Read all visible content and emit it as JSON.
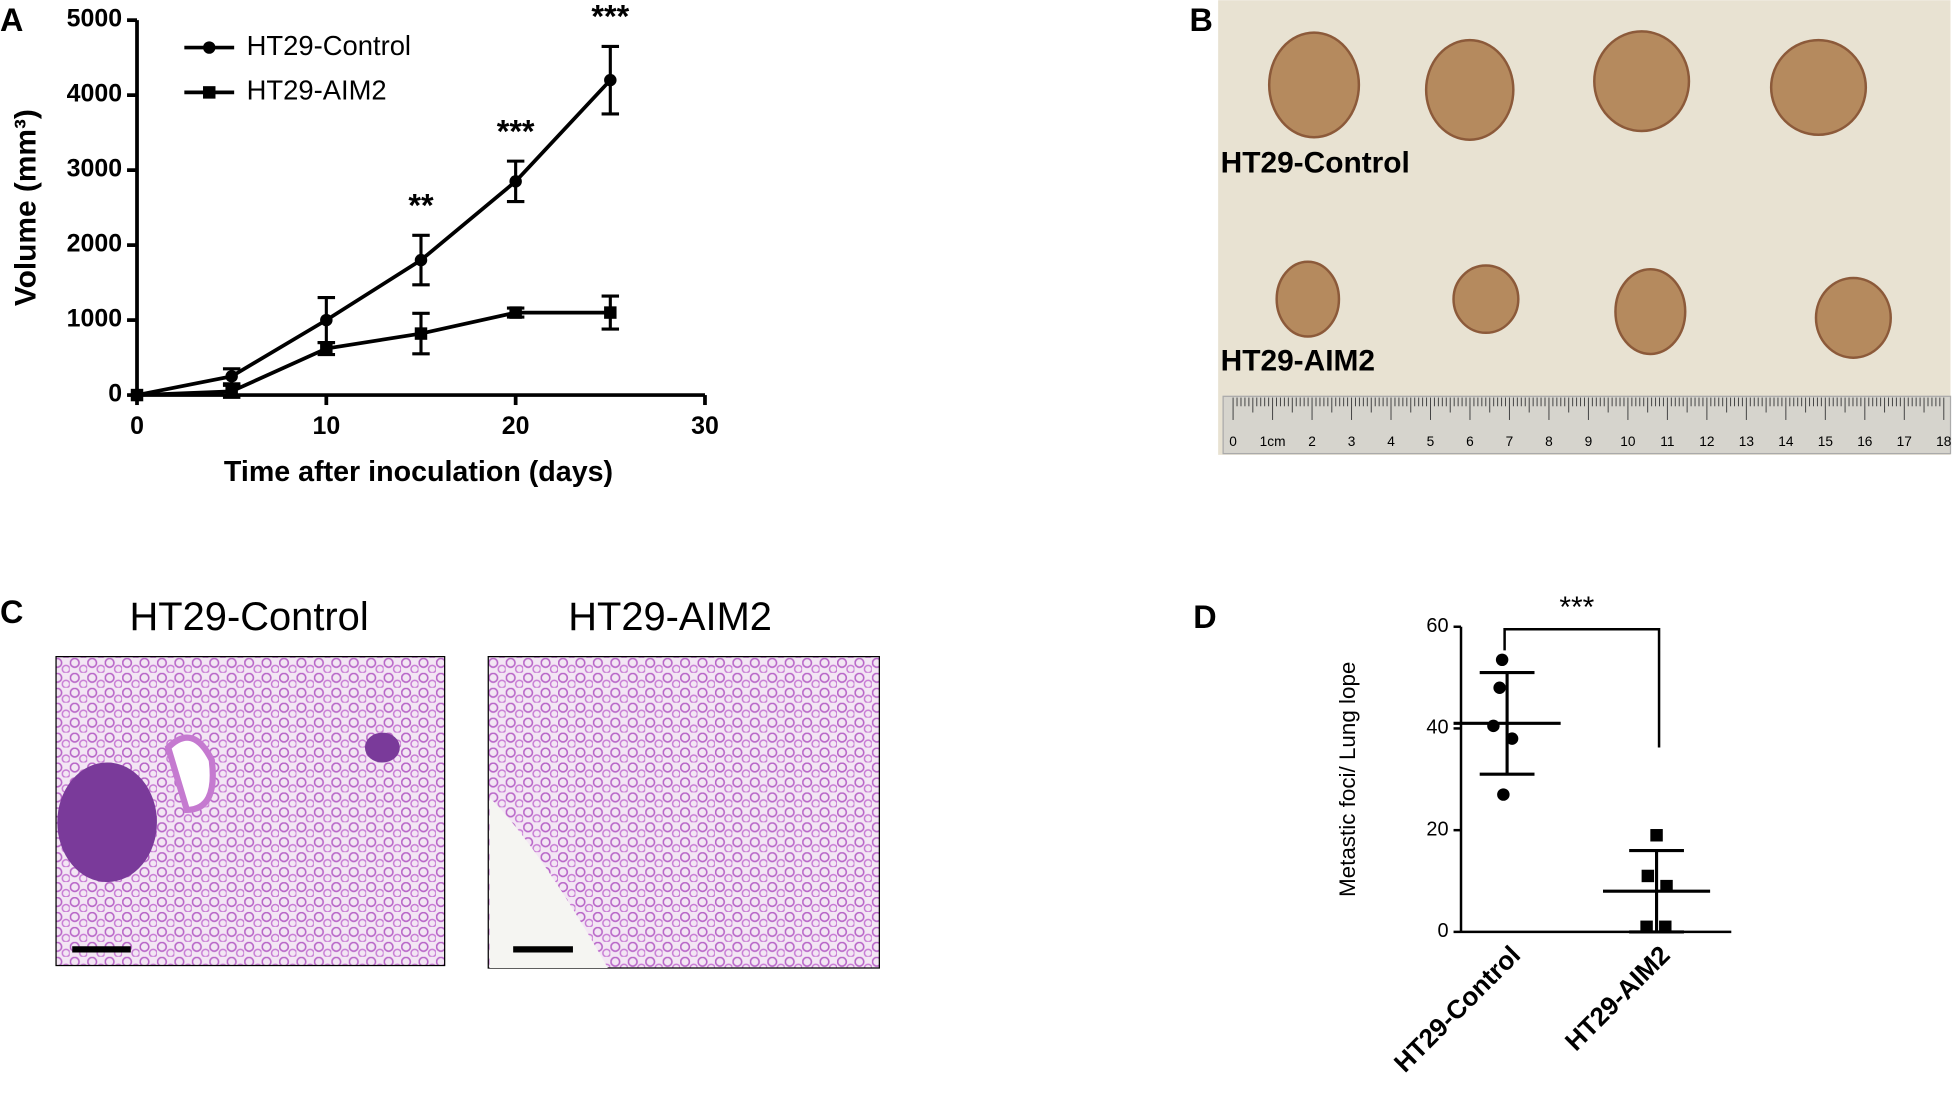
{
  "panel_labels": [
    "A",
    "B",
    "C",
    "D"
  ],
  "chart_data": [
    {
      "type": "line",
      "x_label": "Time after inoculation (days)",
      "y_label": "Volume (mm³)",
      "x": [
        0,
        5,
        10,
        15,
        20,
        25
      ],
      "xlim": [
        0,
        30
      ],
      "xticks": [
        0,
        10,
        20,
        30
      ],
      "ylim": [
        0,
        5000
      ],
      "yticks": [
        0,
        1000,
        2000,
        3000,
        4000,
        5000
      ],
      "series": [
        {
          "name": "HT29-Control",
          "color": "#000000",
          "marker": "circle",
          "values": [
            0,
            250,
            1000,
            1800,
            2850,
            4200
          ],
          "errors": [
            0,
            100,
            300,
            330,
            270,
            450
          ]
        },
        {
          "name": "HT29-AIM2",
          "color": "#000000",
          "marker": "square",
          "values": [
            0,
            50,
            620,
            820,
            1100,
            1100
          ],
          "errors": [
            0,
            80,
            80,
            270,
            60,
            220
          ]
        }
      ],
      "annotations": [
        "**",
        "***",
        "***"
      ],
      "legend": "upper left"
    },
    {
      "type": "scatter",
      "y_label": "Metastic foci/ Lung lope",
      "categories": [
        "HT29-Control",
        "HT29-AIM2"
      ],
      "markers": [
        "circle",
        "square"
      ],
      "color": "#000000",
      "values": [
        [
          53.5,
          48,
          40.5,
          38,
          27
        ],
        [
          19,
          11,
          9,
          1,
          1
        ]
      ],
      "means": [
        41,
        8
      ],
      "sds": [
        10,
        8
      ],
      "ylim": [
        0,
        60
      ],
      "yticks": [
        0,
        20,
        40,
        60
      ],
      "significance": "***"
    }
  ],
  "photo": {
    "labels": [
      "HT29-Control",
      "HT29-AIM2"
    ],
    "ruler_labels": [
      "0",
      "1cm",
      "2",
      "3",
      "4",
      "5",
      "6",
      "7",
      "8",
      "9",
      "10",
      "11",
      "12",
      "13",
      "14",
      "15",
      "16",
      "17",
      "18"
    ]
  },
  "micrographs": {
    "titles": [
      "HT29-Control",
      "HT29-AIM2"
    ]
  }
}
